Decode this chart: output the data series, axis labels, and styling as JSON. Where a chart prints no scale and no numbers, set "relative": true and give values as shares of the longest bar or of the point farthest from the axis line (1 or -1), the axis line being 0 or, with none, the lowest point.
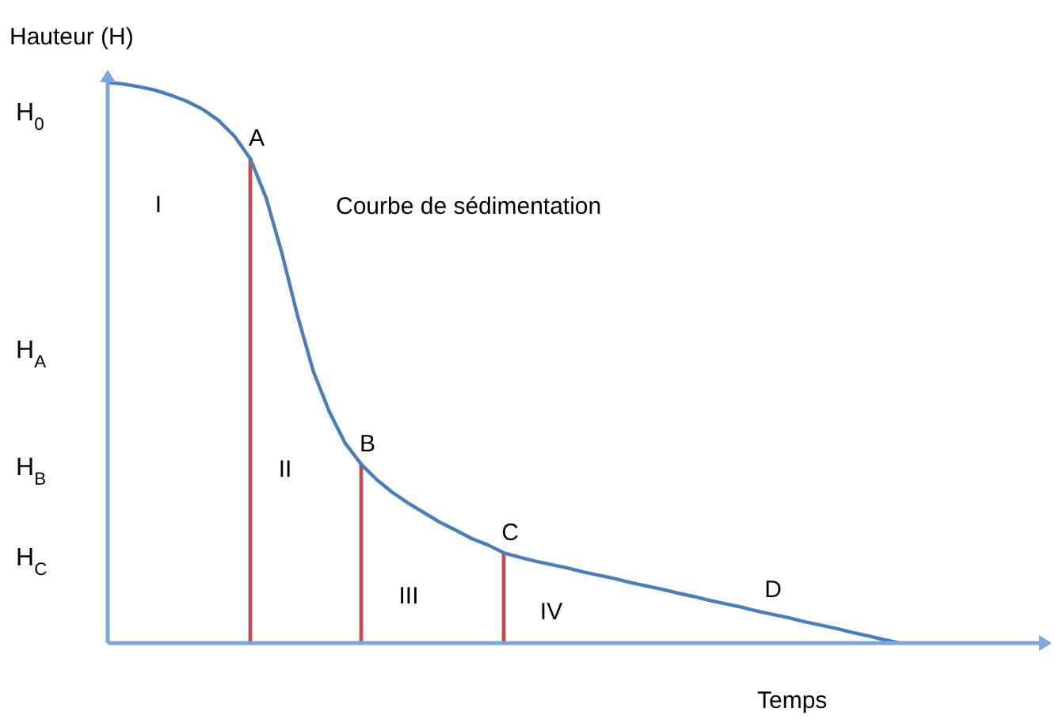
{
  "chart_data": {
    "type": "line",
    "relative": true,
    "xlabel": "Temps",
    "ylabel": "Hauteur (H)",
    "categories": [
      null,
      null,
      null,
      null,
      null,
      null,
      null,
      null,
      null,
      null,
      null,
      null,
      null,
      null,
      null,
      null,
      null,
      null,
      null,
      null,
      null,
      null,
      null,
      null,
      null,
      null,
      null,
      null,
      null,
      null,
      null,
      null,
      null,
      null,
      null,
      null,
      null,
      null,
      null,
      null,
      null,
      null,
      null,
      null,
      null,
      null,
      null,
      null,
      null,
      null,
      null
    ],
    "series": [
      {
        "color": "#4a7ebb",
        "values": [
          1,
          0.997,
          0.992,
          0.986,
          0.977,
          0.966,
          0.952,
          0.932,
          0.904,
          0.864,
          0.794,
          0.695,
          0.582,
          0.483,
          0.412,
          0.356,
          0.319,
          0.291,
          0.268,
          0.249,
          0.232,
          0.215,
          0.201,
          0.186,
          0.175,
          0.161,
          0.153,
          0.146,
          0.14,
          0.134,
          0.127,
          0.121,
          0.115,
          0.108,
          0.102,
          0.096,
          0.089,
          0.083,
          0.076,
          0.07,
          0.064,
          0.057,
          0.051,
          0.045,
          0.038,
          0.032,
          0.026,
          0.019,
          0.013,
          0.006,
          0
        ]
      }
    ],
    "annotations": [
      "H$_{0}$",
      "H$_{A}$",
      "H$_{B}$",
      "H$_{C}$",
      "Courbe de sédimentation",
      "I",
      "II",
      "III",
      "IV",
      "D",
      {
        "text": "A",
        "y": 0.864
      },
      {
        "text": "B",
        "y": 0.319
      },
      {
        "text": "C",
        "y": 0.161
      }
    ]
  }
}
